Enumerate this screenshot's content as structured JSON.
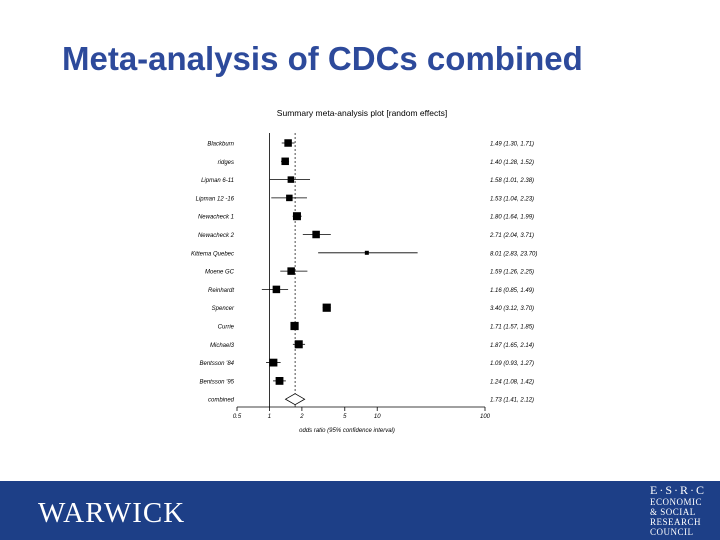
{
  "slide": {
    "title": "Meta-analysis of CDCs combined"
  },
  "footer": {
    "logo_text": "WARWICK",
    "esrc_lines": [
      "E·S·R·C",
      "ECONOMIC",
      "& SOCIAL",
      "RESEARCH",
      "COUNCIL"
    ]
  },
  "colors": {
    "title": "#2d4a9b",
    "footer": "#1d3f87",
    "marker": "#000000"
  },
  "chart_data": {
    "type": "forest",
    "title": "Summary meta-analysis plot [random effects]",
    "xlabel": "odds ratio (95% confidence interval)",
    "x_scale": "log",
    "xlim": [
      0.5,
      100
    ],
    "x_ticks": [
      0.5,
      1,
      2,
      5,
      10,
      100
    ],
    "x_tick_labels": [
      "0.5",
      "1",
      "2",
      "5",
      "10",
      "100"
    ],
    "null_line": 1,
    "pooled_line": 1.73,
    "studies": [
      {
        "name": "Blackburn",
        "or": 1.49,
        "lo": 1.3,
        "hi": 1.71,
        "label": "1.49 (1.30, 1.71)",
        "weight": 0.55
      },
      {
        "name": "ridges",
        "or": 1.4,
        "lo": 1.28,
        "hi": 1.52,
        "label": "1.40 (1.28, 1.52)",
        "weight": 0.55
      },
      {
        "name": "Lipman 6-11",
        "or": 1.58,
        "lo": 1.01,
        "hi": 2.38,
        "label": "1.58 (1.01, 2.38)",
        "weight": 0.45
      },
      {
        "name": "Lipman 12 -16",
        "or": 1.53,
        "lo": 1.04,
        "hi": 2.23,
        "label": "1.53 (1.04, 2.23)",
        "weight": 0.45
      },
      {
        "name": "Newacheck 1",
        "or": 1.8,
        "lo": 1.64,
        "hi": 1.99,
        "label": "1.80 (1.64, 1.99)",
        "weight": 0.6
      },
      {
        "name": "Newacheck 2",
        "or": 2.71,
        "lo": 2.04,
        "hi": 3.71,
        "label": "2.71 (2.04, 3.71)",
        "weight": 0.55
      },
      {
        "name": "Kittema Quebec",
        "or": 8.01,
        "lo": 2.83,
        "hi": 23.7,
        "label": "8.01 (2.83, 23.70)",
        "weight": 0.2
      },
      {
        "name": "Moene GC",
        "or": 1.59,
        "lo": 1.26,
        "hi": 2.25,
        "label": "1.59 (1.26, 2.25)",
        "weight": 0.55
      },
      {
        "name": "Reinhardt",
        "or": 1.16,
        "lo": 0.85,
        "hi": 1.49,
        "label": "1.16 (0.85, 1.49)",
        "weight": 0.55
      },
      {
        "name": "Spencer",
        "or": 3.4,
        "lo": 3.12,
        "hi": 3.7,
        "label": "3.40 (3.12, 3.70)",
        "weight": 0.62
      },
      {
        "name": "Currie",
        "or": 1.71,
        "lo": 1.57,
        "hi": 1.85,
        "label": "1.71 (1.57, 1.85)",
        "weight": 0.62
      },
      {
        "name": "Michael3",
        "or": 1.87,
        "lo": 1.65,
        "hi": 2.14,
        "label": "1.87 (1.65, 2.14)",
        "weight": 0.6
      },
      {
        "name": "Bentsson '84",
        "or": 1.09,
        "lo": 0.93,
        "hi": 1.27,
        "label": "1.09 (0.93, 1.27)",
        "weight": 0.58
      },
      {
        "name": "Bentsson '95",
        "or": 1.24,
        "lo": 1.08,
        "hi": 1.42,
        "label": "1.24 (1.08, 1.42)",
        "weight": 0.58
      }
    ],
    "combined": {
      "name": "combined",
      "or": 1.73,
      "lo": 1.41,
      "hi": 2.12,
      "label": "1.73 (1.41, 2.12)"
    }
  }
}
